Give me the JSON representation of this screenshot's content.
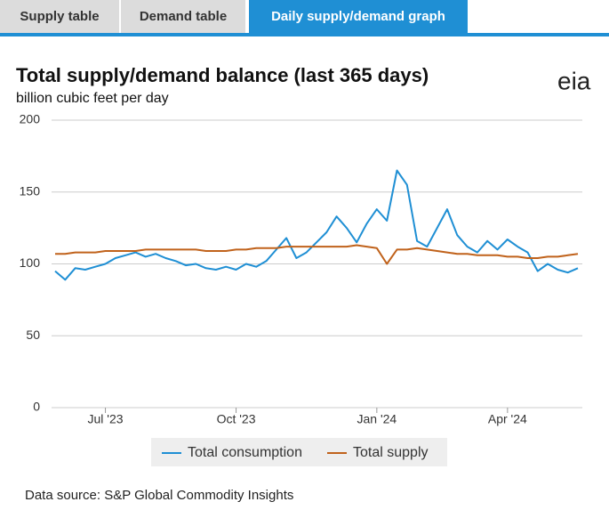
{
  "tabs": [
    "Supply table",
    "Demand table",
    "Daily supply/demand graph"
  ],
  "logo": "eia",
  "footer": "Data source: S&P Global Commodity Insights",
  "chart_data": {
    "type": "line",
    "title": "Total supply/demand balance (last 365 days)",
    "subtitle": "billion cubic feet per day",
    "categories": [
      null,
      null,
      null,
      null,
      null,
      "Jul '23",
      null,
      null,
      null,
      null,
      null,
      null,
      null,
      null,
      null,
      null,
      null,
      null,
      "Oct '23",
      null,
      null,
      null,
      null,
      null,
      null,
      null,
      null,
      null,
      null,
      null,
      null,
      null,
      "Jan '24",
      null,
      null,
      null,
      null,
      null,
      null,
      null,
      null,
      null,
      null,
      null,
      null,
      "Apr '24",
      null,
      null,
      null,
      null,
      null,
      null,
      null
    ],
    "series": [
      {
        "name": "Total consumption",
        "color": "#1f8fd4",
        "values": [
          95,
          89,
          97,
          96,
          98,
          100,
          104,
          106,
          108,
          105,
          107,
          104,
          102,
          99,
          100,
          97,
          96,
          98,
          96,
          100,
          98,
          102,
          110,
          118,
          104,
          108,
          115,
          122,
          133,
          125,
          115,
          128,
          138,
          130,
          165,
          155,
          116,
          112,
          125,
          138,
          120,
          112,
          108,
          116,
          110,
          117,
          112,
          108,
          95,
          100,
          96,
          94,
          97
        ]
      },
      {
        "name": "Total supply",
        "color": "#c0621b",
        "values": [
          107,
          107,
          108,
          108,
          108,
          109,
          109,
          109,
          109,
          110,
          110,
          110,
          110,
          110,
          110,
          109,
          109,
          109,
          110,
          110,
          111,
          111,
          111,
          112,
          112,
          112,
          112,
          112,
          112,
          112,
          113,
          112,
          111,
          100,
          110,
          110,
          111,
          110,
          109,
          108,
          107,
          107,
          106,
          106,
          106,
          105,
          105,
          104,
          104,
          105,
          105,
          106,
          107
        ]
      }
    ],
    "ylim": [
      0,
      200
    ],
    "yticks": [
      0,
      50,
      100,
      150,
      200
    ],
    "grid": true
  }
}
